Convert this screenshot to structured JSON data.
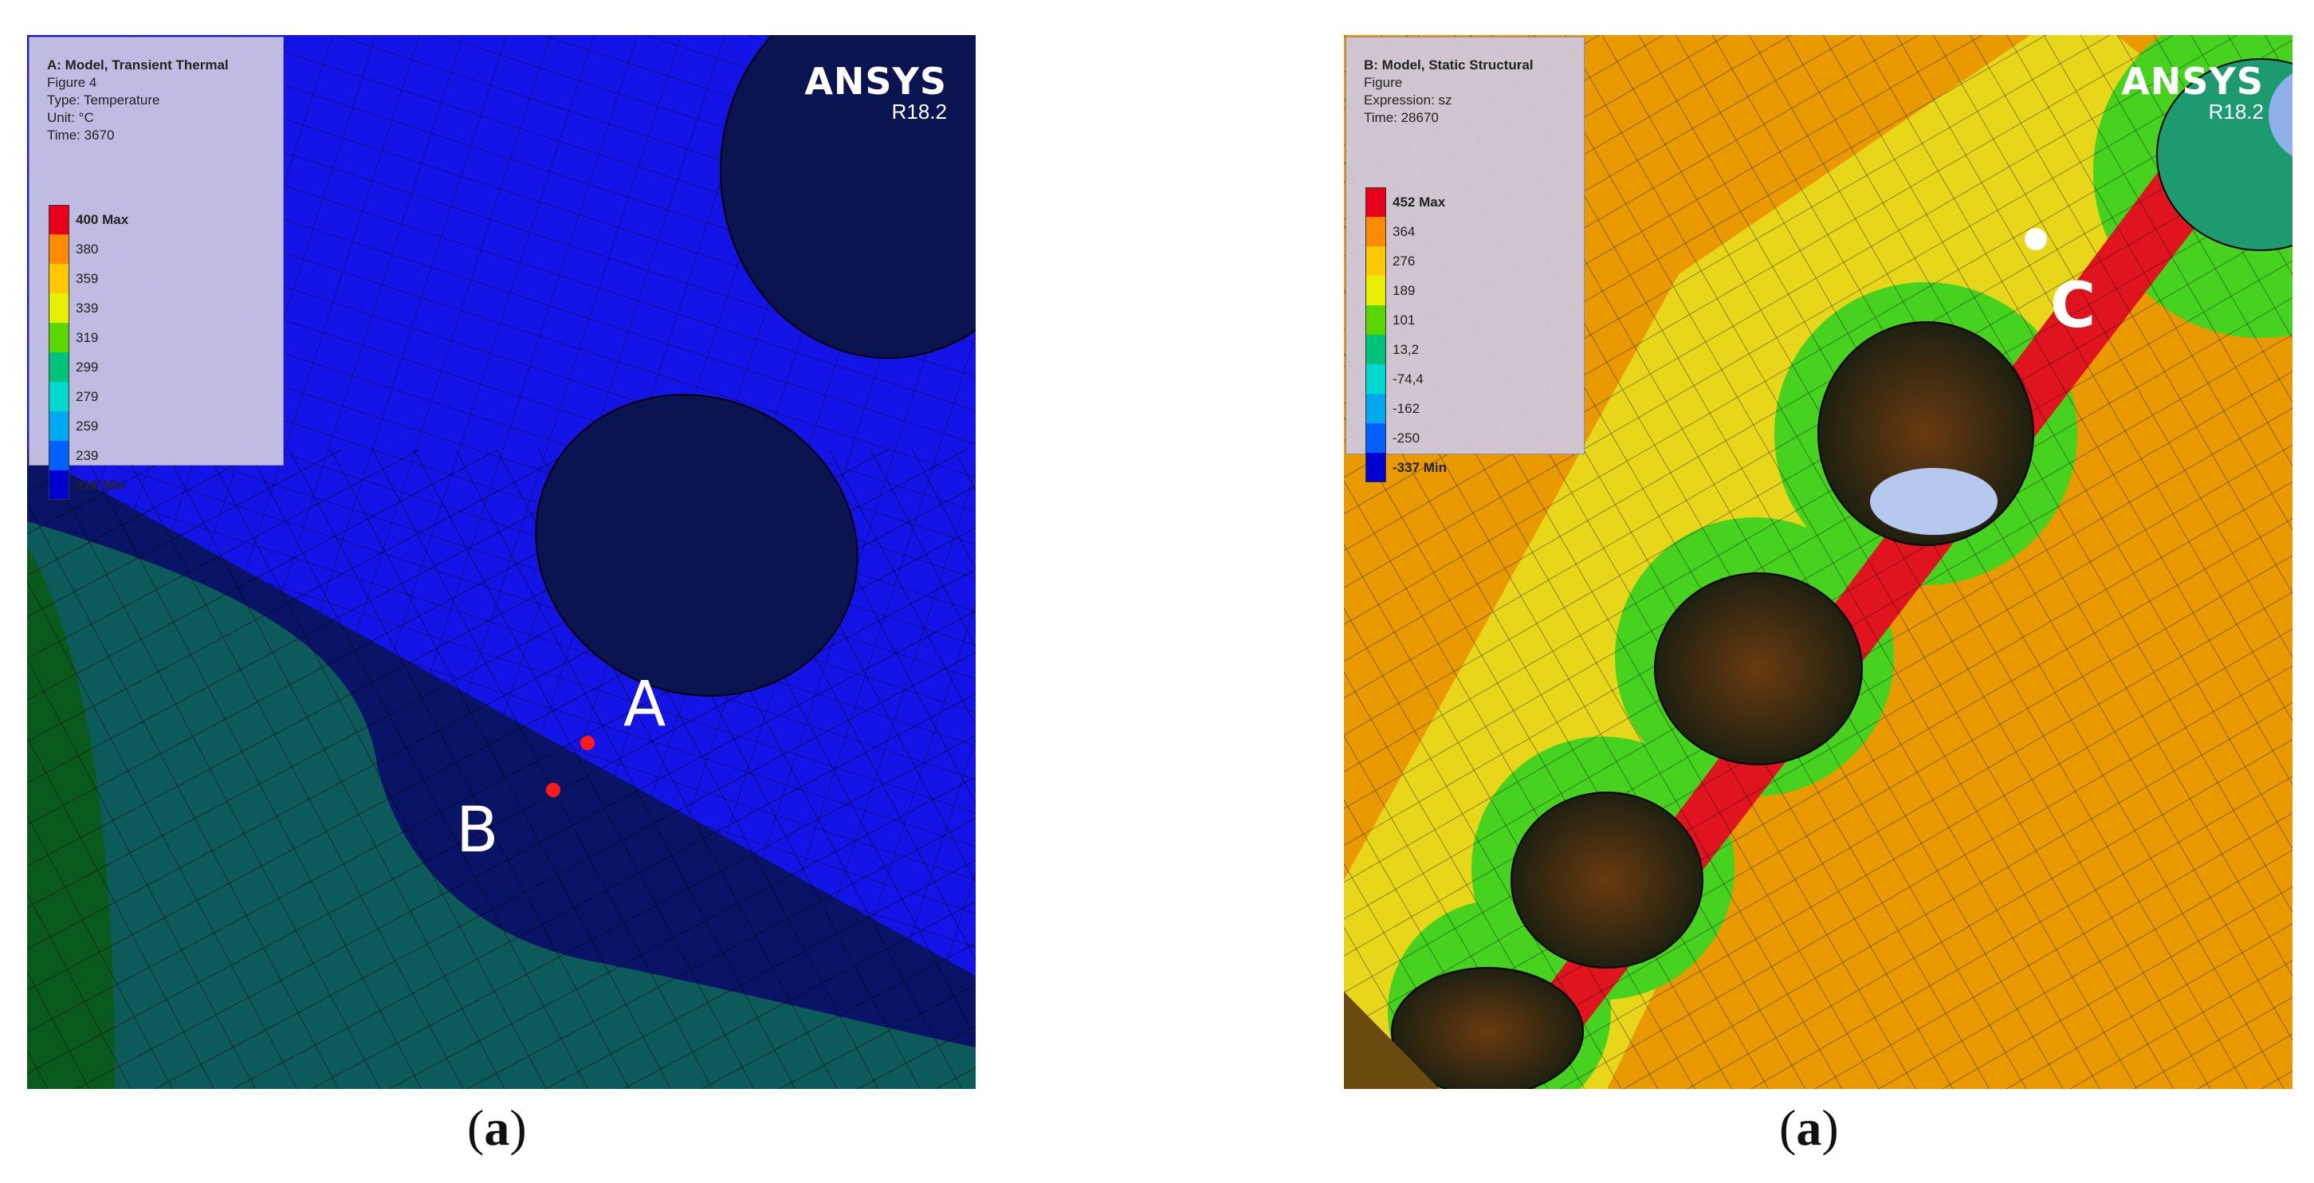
{
  "panels": {
    "a": {
      "legend": {
        "title": "A: Model, Transient Thermal",
        "lines": [
          "Figure 4",
          "Type: Temperature",
          "Unit: °C",
          "Time: 3670"
        ],
        "levels": [
          {
            "label": "400 Max",
            "color": "#e8001a",
            "bold": true
          },
          {
            "label": "380",
            "color": "#ff8a00"
          },
          {
            "label": "359",
            "color": "#ffc800"
          },
          {
            "label": "339",
            "color": "#e6f000"
          },
          {
            "label": "319",
            "color": "#5ad700"
          },
          {
            "label": "299",
            "color": "#00c37a"
          },
          {
            "label": "279",
            "color": "#00d8d0"
          },
          {
            "label": "259",
            "color": "#00a8f0"
          },
          {
            "label": "239",
            "color": "#0060ff"
          },
          {
            "label": "218 Min",
            "color": "#0000d0",
            "bold": true
          }
        ]
      },
      "brand": {
        "name": "ANSYS",
        "version": "R18.2"
      },
      "markers": [
        "A",
        "B"
      ],
      "caption_open": "(",
      "caption_letter": "a",
      "caption_close": ")",
      "colors": {
        "field": "#1414e6",
        "hole": "#0a1450",
        "band": "#0a1466",
        "teal": "#0d5a5a",
        "green": "#0a5a1e"
      }
    },
    "b": {
      "legend": {
        "title": "B: Model, Static Structural",
        "lines": [
          "Figure",
          "Expression: sz",
          "Time: 28670"
        ],
        "levels": [
          {
            "label": "452 Max",
            "color": "#e8001a",
            "bold": true
          },
          {
            "label": "364",
            "color": "#ff8a00"
          },
          {
            "label": "276",
            "color": "#ffc800"
          },
          {
            "label": "189",
            "color": "#e6f000"
          },
          {
            "label": "101",
            "color": "#5ad700"
          },
          {
            "label": "13,2",
            "color": "#00c37a"
          },
          {
            "label": "-74,4",
            "color": "#00d8d0"
          },
          {
            "label": "-162",
            "color": "#00a8f0"
          },
          {
            "label": "-250",
            "color": "#0060ff"
          },
          {
            "label": "-337 Min",
            "color": "#0000d0",
            "bold": true
          }
        ]
      },
      "brand": {
        "name": "ANSYS",
        "version": "R18.2"
      },
      "markers": [
        "C"
      ],
      "caption_open": "(",
      "caption_letter": "a",
      "caption_close": ")",
      "colors": {
        "field": "#e89a00",
        "red": "#e0141e",
        "yellow": "#e8e020",
        "green": "#46d21e",
        "hole": "#2a2a12"
      }
    }
  }
}
